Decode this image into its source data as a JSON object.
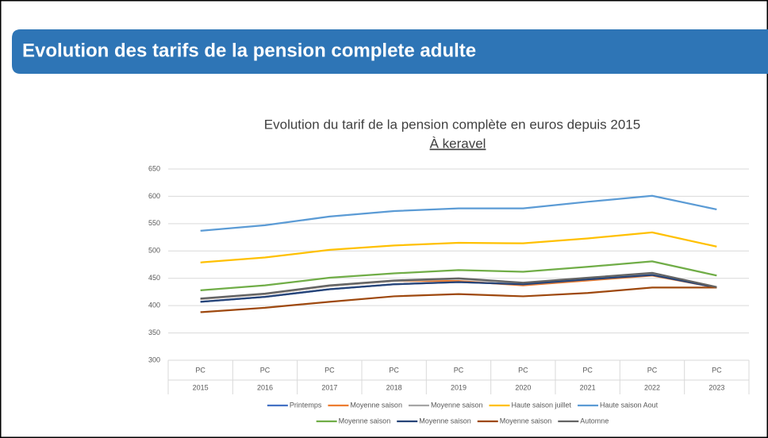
{
  "slide_title": "Evolution des tarifs de la pension complete adulte",
  "chart_data": {
    "type": "line",
    "title": "Evolution du tarif de la pension complète en euros depuis 2015",
    "subtitle": "À keravel",
    "subcategories": [
      "PC",
      "PC",
      "PC",
      "PC",
      "PC",
      "PC",
      "PC",
      "PC",
      "PC"
    ],
    "categories": [
      "2015",
      "2016",
      "2017",
      "2018",
      "2019",
      "2020",
      "2021",
      "2022",
      "2023"
    ],
    "ylim": [
      300,
      650
    ],
    "yticks": [
      300,
      350,
      400,
      450,
      500,
      550,
      600,
      650
    ],
    "grid": true,
    "legend": "bottom",
    "series": [
      {
        "name": "Printemps",
        "color": "#4472c4",
        "values": [
          407,
          416,
          430,
          439,
          443,
          439,
          448,
          456,
          433
        ]
      },
      {
        "name": "Moyenne saison",
        "color": "#ed7d31",
        "values": [
          412,
          421,
          436,
          445,
          445,
          437,
          446,
          455,
          433
        ]
      },
      {
        "name": "Moyenne saison",
        "color": "#a5a5a5",
        "values": [
          412,
          421,
          436,
          445,
          449,
          441,
          450,
          459,
          433
        ]
      },
      {
        "name": "Haute saison juillet",
        "color": "#ffc000",
        "values": [
          479,
          488,
          502,
          510,
          515,
          514,
          523,
          534,
          508
        ]
      },
      {
        "name": "Haute saison Aout",
        "color": "#5b9bd5",
        "values": [
          537,
          547,
          563,
          573,
          578,
          578,
          590,
          601,
          576
        ]
      },
      {
        "name": "Moyenne saison",
        "color": "#70ad47",
        "values": [
          428,
          437,
          451,
          459,
          465,
          462,
          471,
          481,
          455
        ]
      },
      {
        "name": "Moyenne saison",
        "color": "#264478",
        "values": [
          407,
          416,
          430,
          439,
          443,
          439,
          448,
          456,
          433
        ]
      },
      {
        "name": "Moyenne saison",
        "color": "#9e480e",
        "values": [
          388,
          396,
          407,
          417,
          421,
          417,
          423,
          433,
          433
        ]
      },
      {
        "name": "Automne",
        "color": "#636363",
        "values": [
          413,
          422,
          437,
          446,
          450,
          442,
          451,
          460,
          434
        ]
      }
    ]
  }
}
